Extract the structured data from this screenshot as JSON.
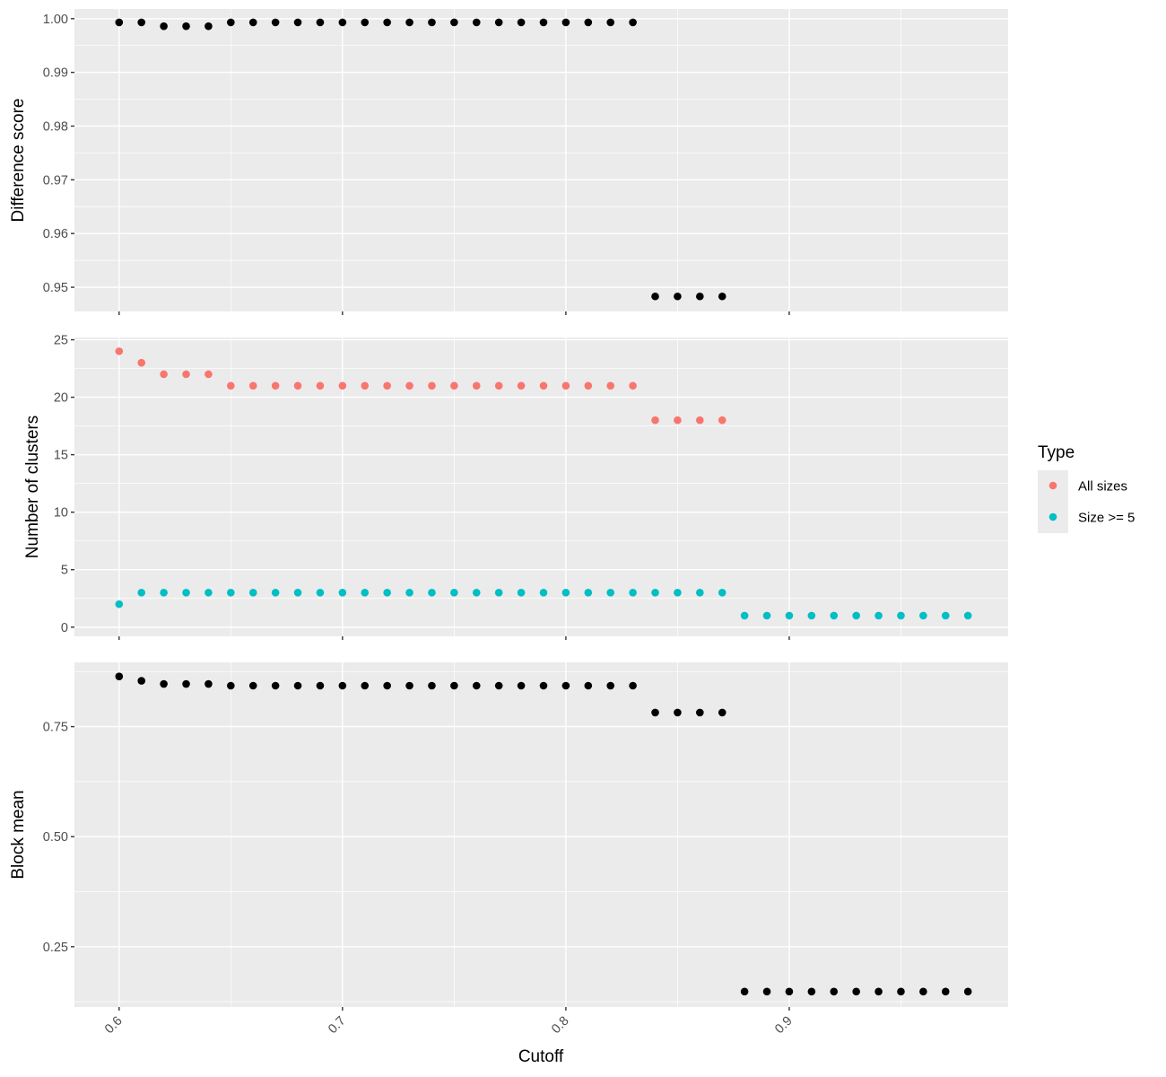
{
  "chart_data": {
    "type": "scatter",
    "xlabel": "Cutoff",
    "x_ticks": [
      0.6,
      0.7,
      0.8,
      0.9
    ],
    "x_tick_labels": [
      "0.6",
      "0.7",
      "0.8",
      "0.9"
    ],
    "xlim": [
      0.58,
      0.998
    ],
    "legend": {
      "title": "Type",
      "position": "right",
      "entries": [
        {
          "label": "All sizes",
          "color": "#F8766D"
        },
        {
          "label": "Size >= 5",
          "color": "#00BFC4"
        }
      ]
    },
    "panels": [
      {
        "ylabel": "Difference score",
        "ylim": [
          0.9455,
          1.0018
        ],
        "y_ticks": [
          0.95,
          0.96,
          0.97,
          0.98,
          0.99,
          1.0
        ],
        "y_tick_labels": [
          "0.95",
          "0.96",
          "0.97",
          "0.98",
          "0.99",
          "1.00"
        ],
        "series": [
          {
            "color": "#000000",
            "x": [
              0.6,
              0.61,
              0.62,
              0.63,
              0.64,
              0.65,
              0.66,
              0.67,
              0.68,
              0.69,
              0.7,
              0.71,
              0.72,
              0.73,
              0.74,
              0.75,
              0.76,
              0.77,
              0.78,
              0.79,
              0.8,
              0.81,
              0.82,
              0.83,
              0.84,
              0.85,
              0.86,
              0.87
            ],
            "y": [
              0.9993,
              0.9993,
              0.9986,
              0.9986,
              0.9986,
              0.9993,
              0.9993,
              0.9993,
              0.9993,
              0.9993,
              0.9993,
              0.9993,
              0.9993,
              0.9993,
              0.9993,
              0.9993,
              0.9993,
              0.9993,
              0.9993,
              0.9993,
              0.9993,
              0.9993,
              0.9993,
              0.9993,
              0.9483,
              0.9483,
              0.9483,
              0.9483
            ]
          }
        ]
      },
      {
        "ylabel": "Number of clusters",
        "ylim": [
          -0.8,
          25.2
        ],
        "y_ticks": [
          0,
          5,
          10,
          15,
          20,
          25
        ],
        "y_tick_labels": [
          "0",
          "5",
          "10",
          "15",
          "20",
          "25"
        ],
        "series": [
          {
            "name": "All sizes",
            "color": "#F8766D",
            "x": [
              0.6,
              0.61,
              0.62,
              0.63,
              0.64,
              0.65,
              0.66,
              0.67,
              0.68,
              0.69,
              0.7,
              0.71,
              0.72,
              0.73,
              0.74,
              0.75,
              0.76,
              0.77,
              0.78,
              0.79,
              0.8,
              0.81,
              0.82,
              0.83,
              0.84,
              0.85,
              0.86,
              0.87
            ],
            "y": [
              24,
              23,
              22,
              22,
              22,
              21,
              21,
              21,
              21,
              21,
              21,
              21,
              21,
              21,
              21,
              21,
              21,
              21,
              21,
              21,
              21,
              21,
              21,
              21,
              18,
              18,
              18,
              18
            ]
          },
          {
            "name": "Size >= 5",
            "color": "#00BFC4",
            "x": [
              0.6,
              0.61,
              0.62,
              0.63,
              0.64,
              0.65,
              0.66,
              0.67,
              0.68,
              0.69,
              0.7,
              0.71,
              0.72,
              0.73,
              0.74,
              0.75,
              0.76,
              0.77,
              0.78,
              0.79,
              0.8,
              0.81,
              0.82,
              0.83,
              0.84,
              0.85,
              0.86,
              0.87,
              0.88,
              0.89,
              0.9,
              0.91,
              0.92,
              0.93,
              0.94,
              0.95,
              0.96,
              0.97,
              0.98
            ],
            "y": [
              2,
              3,
              3,
              3,
              3,
              3,
              3,
              3,
              3,
              3,
              3,
              3,
              3,
              3,
              3,
              3,
              3,
              3,
              3,
              3,
              3,
              3,
              3,
              3,
              3,
              3,
              3,
              3,
              1,
              1,
              1,
              1,
              1,
              1,
              1,
              1,
              1,
              1,
              1
            ]
          }
        ]
      },
      {
        "ylabel": "Block mean",
        "ylim": [
          0.113,
          0.896
        ],
        "y_ticks": [
          0.25,
          0.5,
          0.75
        ],
        "y_tick_labels": [
          "0.25",
          "0.50",
          "0.75"
        ],
        "series": [
          {
            "color": "#000000",
            "x": [
              0.6,
              0.61,
              0.62,
              0.63,
              0.64,
              0.65,
              0.66,
              0.67,
              0.68,
              0.69,
              0.7,
              0.71,
              0.72,
              0.73,
              0.74,
              0.75,
              0.76,
              0.77,
              0.78,
              0.79,
              0.8,
              0.81,
              0.82,
              0.83,
              0.84,
              0.85,
              0.86,
              0.87,
              0.88,
              0.89,
              0.9,
              0.91,
              0.92,
              0.93,
              0.94,
              0.95,
              0.96,
              0.97,
              0.98
            ],
            "y": [
              0.864,
              0.854,
              0.847,
              0.847,
              0.847,
              0.843,
              0.843,
              0.843,
              0.843,
              0.843,
              0.843,
              0.843,
              0.843,
              0.843,
              0.843,
              0.843,
              0.843,
              0.843,
              0.843,
              0.843,
              0.843,
              0.843,
              0.843,
              0.843,
              0.782,
              0.782,
              0.782,
              0.782,
              0.148,
              0.148,
              0.148,
              0.148,
              0.148,
              0.148,
              0.148,
              0.148,
              0.148,
              0.148,
              0.148
            ]
          }
        ]
      }
    ]
  }
}
